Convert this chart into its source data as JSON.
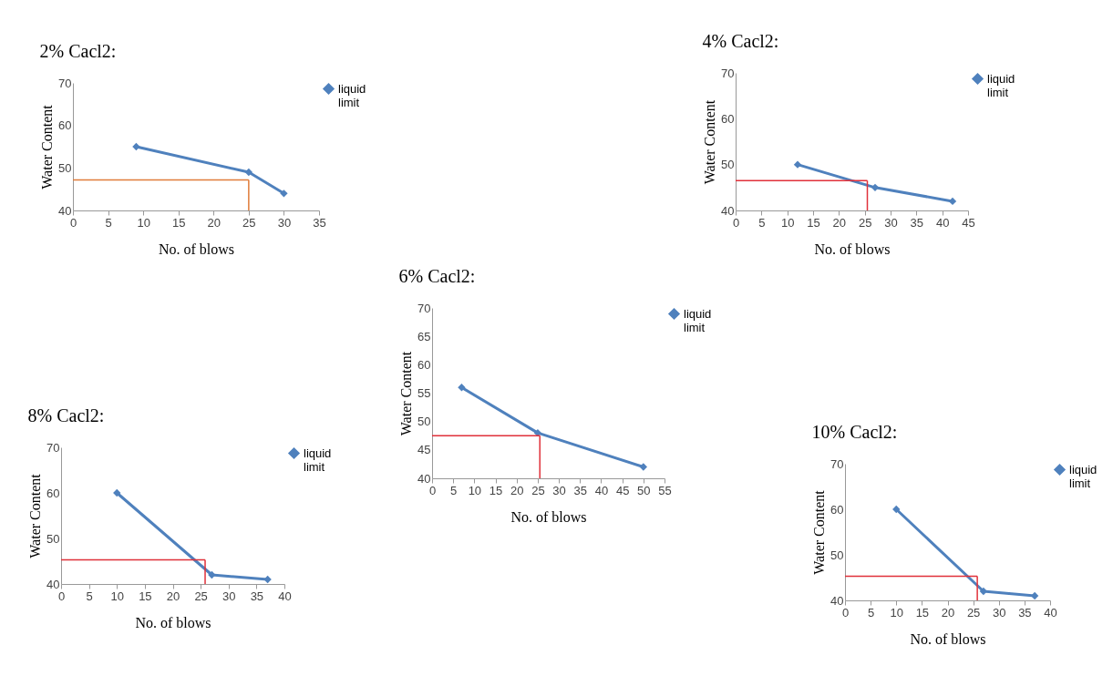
{
  "chart_data": [
    {
      "type": "line",
      "title": "2% Cacl2:",
      "xlabel": "No. of blows",
      "ylabel": "Water Content",
      "x": [
        9,
        25,
        30
      ],
      "series": [
        {
          "name": "liquid limit",
          "color": "#4f81bd",
          "values": [
            55,
            49,
            44
          ]
        }
      ],
      "xlim": [
        0,
        35
      ],
      "xticks": [
        0,
        5,
        10,
        15,
        20,
        25,
        30,
        35
      ],
      "ylim": [
        40,
        70
      ],
      "yticks": [
        40,
        50,
        60,
        70
      ],
      "marker": "diamond",
      "legend": "right",
      "ref_lines": [
        {
          "axis": "y",
          "value": 47.2,
          "color": "#e07b39"
        },
        {
          "axis": "x",
          "value": 25,
          "color": "#e07b39"
        }
      ]
    },
    {
      "type": "line",
      "title": "4%  Cacl2:",
      "xlabel": "No. of blows",
      "ylabel": "Water Content",
      "x": [
        12,
        27,
        42
      ],
      "series": [
        {
          "name": "liquid limit",
          "color": "#4f81bd",
          "values": [
            50,
            45,
            42
          ]
        }
      ],
      "xlim": [
        0,
        45
      ],
      "xticks": [
        0,
        5,
        10,
        15,
        20,
        25,
        30,
        35,
        40,
        45
      ],
      "ylim": [
        40,
        70
      ],
      "yticks": [
        40,
        50,
        60,
        70
      ],
      "marker": "diamond",
      "legend": "right",
      "ref_lines": [
        {
          "axis": "y",
          "value": 46.5,
          "color": "#e0303a"
        },
        {
          "axis": "x",
          "value": 25.5,
          "color": "#e0303a"
        }
      ]
    },
    {
      "type": "line",
      "title": "6% Cacl2:",
      "xlabel": "No. of blows",
      "ylabel": "Water Content",
      "x": [
        7,
        25,
        50
      ],
      "series": [
        {
          "name": "liquid limit",
          "color": "#4f81bd",
          "values": [
            56,
            48,
            42
          ]
        }
      ],
      "xlim": [
        0,
        55
      ],
      "xticks": [
        0,
        5,
        10,
        15,
        20,
        25,
        30,
        35,
        40,
        45,
        50,
        55
      ],
      "ylim": [
        40,
        70
      ],
      "yticks": [
        40,
        45,
        50,
        55,
        60,
        65,
        70
      ],
      "marker": "diamond",
      "legend": "right",
      "ref_lines": [
        {
          "axis": "y",
          "value": 47.5,
          "color": "#e0303a"
        },
        {
          "axis": "x",
          "value": 25.5,
          "color": "#e0303a"
        }
      ]
    },
    {
      "type": "line",
      "title": "8% Cacl2:",
      "xlabel": "No. of blows",
      "ylabel": "Water Content",
      "x": [
        10,
        27,
        37
      ],
      "series": [
        {
          "name": "liquid limit",
          "color": "#4f81bd",
          "values": [
            60,
            42,
            41
          ]
        }
      ],
      "xlim": [
        0,
        40
      ],
      "xticks": [
        0,
        5,
        10,
        15,
        20,
        25,
        30,
        35,
        40
      ],
      "ylim": [
        40,
        70
      ],
      "yticks": [
        40,
        50,
        60,
        70
      ],
      "marker": "diamond",
      "legend": "right",
      "ref_lines": [
        {
          "axis": "y",
          "value": 45.3,
          "color": "#e0303a"
        },
        {
          "axis": "x",
          "value": 25.8,
          "color": "#e0303a"
        }
      ]
    },
    {
      "type": "line",
      "title": "10% Cacl2:",
      "xlabel": "No. of blows",
      "ylabel": "Water Content",
      "x": [
        10,
        27,
        37
      ],
      "series": [
        {
          "name": "liquid limit",
          "color": "#4f81bd",
          "values": [
            60,
            42,
            41
          ]
        }
      ],
      "xlim": [
        0,
        40
      ],
      "xticks": [
        0,
        5,
        10,
        15,
        20,
        25,
        30,
        35,
        40
      ],
      "ylim": [
        40,
        70
      ],
      "yticks": [
        40,
        50,
        60,
        70
      ],
      "marker": "diamond",
      "legend": "right",
      "ref_lines": [
        {
          "axis": "y",
          "value": 45.3,
          "color": "#e0303a"
        },
        {
          "axis": "x",
          "value": 25.8,
          "color": "#e0303a"
        }
      ]
    }
  ]
}
